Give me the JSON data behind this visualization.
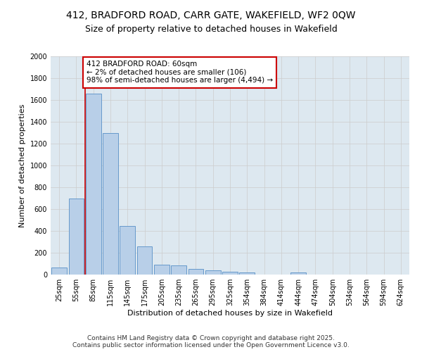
{
  "title_line1": "412, BRADFORD ROAD, CARR GATE, WAKEFIELD, WF2 0QW",
  "title_line2": "Size of property relative to detached houses in Wakefield",
  "xlabel": "Distribution of detached houses by size in Wakefield",
  "ylabel": "Number of detached properties",
  "categories": [
    "25sqm",
    "55sqm",
    "85sqm",
    "115sqm",
    "145sqm",
    "175sqm",
    "205sqm",
    "235sqm",
    "265sqm",
    "295sqm",
    "325sqm",
    "354sqm",
    "384sqm",
    "414sqm",
    "444sqm",
    "474sqm",
    "504sqm",
    "534sqm",
    "564sqm",
    "594sqm",
    "624sqm"
  ],
  "values": [
    65,
    700,
    1660,
    1300,
    445,
    255,
    90,
    85,
    50,
    38,
    28,
    22,
    0,
    0,
    18,
    0,
    0,
    0,
    0,
    0,
    0
  ],
  "bar_color": "#b8cfe8",
  "bar_edge_color": "#6699cc",
  "annotation_text": "412 BRADFORD ROAD: 60sqm\n← 2% of detached houses are smaller (106)\n98% of semi-detached houses are larger (4,494) →",
  "annotation_box_color": "#ffffff",
  "annotation_box_edge_color": "#cc0000",
  "vline_color": "#cc0000",
  "ylim": [
    0,
    2000
  ],
  "yticks": [
    0,
    200,
    400,
    600,
    800,
    1000,
    1200,
    1400,
    1600,
    1800,
    2000
  ],
  "grid_color": "#cccccc",
  "background_color": "#dde8f0",
  "footer_text": "Contains HM Land Registry data © Crown copyright and database right 2025.\nContains public sector information licensed under the Open Government Licence v3.0.",
  "title_fontsize": 10,
  "subtitle_fontsize": 9,
  "axis_label_fontsize": 8,
  "tick_fontsize": 7,
  "annotation_fontsize": 7.5,
  "footer_fontsize": 6.5
}
